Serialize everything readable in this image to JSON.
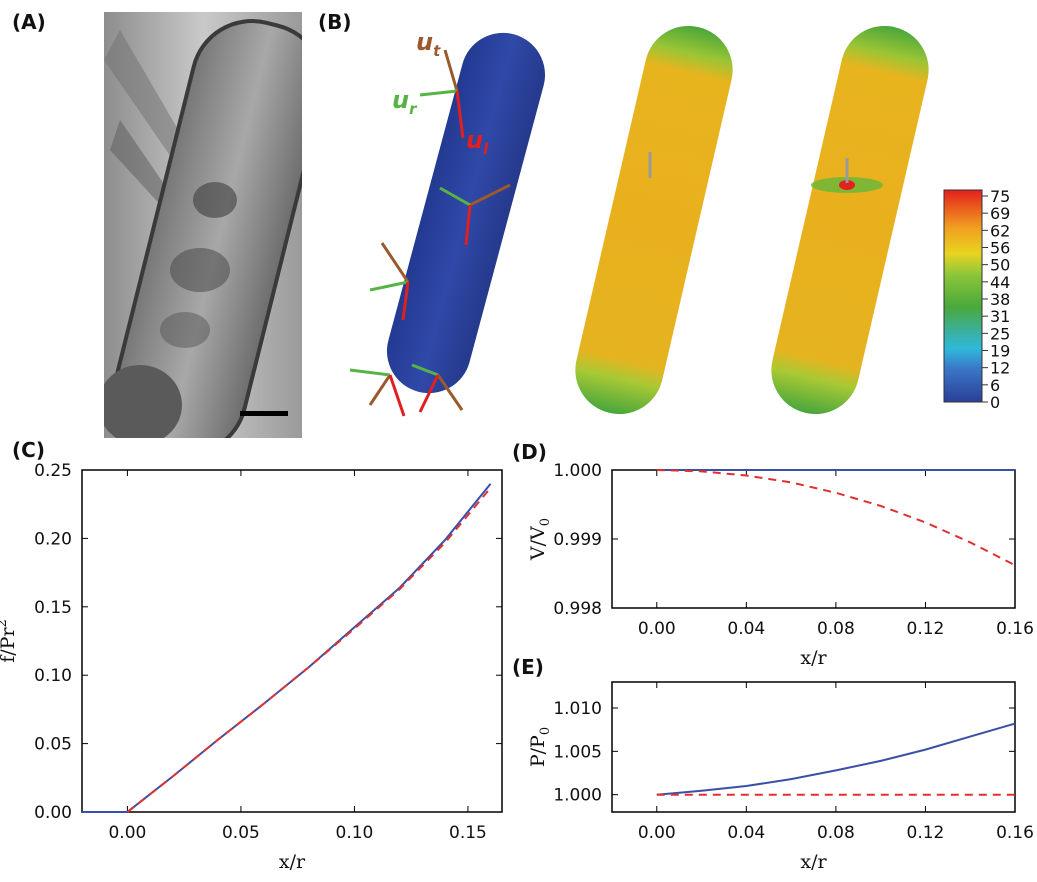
{
  "panels": {
    "a": "(A)",
    "b": "(B)",
    "c": "(C)",
    "d": "(D)",
    "e": "(E)"
  },
  "panel_b": {
    "vector_labels": {
      "t": "u",
      "t_sub": "t",
      "r": "u",
      "r_sub": "r",
      "l": "u",
      "l_sub": "l"
    },
    "colorbar_ticks": [
      "75",
      "69",
      "62",
      "56",
      "50",
      "44",
      "38",
      "31",
      "25",
      "19",
      "12",
      "6",
      "0"
    ],
    "colors": {
      "blue_cell": "#2c43a0",
      "stress_body": "#e8b21c",
      "stress_cap": "#4aa63a",
      "arrow_t": "#9a5a2e",
      "arrow_r": "#55b445",
      "arrow_l": "#e02020"
    }
  },
  "chart_data": [
    {
      "id": "C",
      "type": "line",
      "xlabel": "x/r",
      "ylabel": "f/Pr",
      "ylabel_sup": "2",
      "xlim": [
        -0.02,
        0.165
      ],
      "ylim": [
        0.0,
        0.25
      ],
      "xticks": [
        "0.00",
        "0.05",
        "0.10",
        "0.15"
      ],
      "xtick_values": [
        0.0,
        0.05,
        0.1,
        0.15
      ],
      "yticks": [
        "0.00",
        "0.05",
        "0.10",
        "0.15",
        "0.20",
        "0.25"
      ],
      "ytick_values": [
        0.0,
        0.05,
        0.1,
        0.15,
        0.2,
        0.25
      ],
      "series": [
        {
          "style": "solid",
          "color": "#3a4fa8",
          "x": [
            -0.02,
            0.0,
            0.02,
            0.04,
            0.06,
            0.08,
            0.1,
            0.12,
            0.14,
            0.16
          ],
          "y": [
            0.0,
            0.0,
            0.026,
            0.053,
            0.079,
            0.106,
            0.135,
            0.164,
            0.199,
            0.24
          ]
        },
        {
          "style": "dashed",
          "color": "#e03030",
          "x": [
            0.0,
            0.02,
            0.04,
            0.06,
            0.08,
            0.1,
            0.12,
            0.14,
            0.16
          ],
          "y": [
            0.0,
            0.026,
            0.053,
            0.079,
            0.106,
            0.134,
            0.163,
            0.197,
            0.237
          ]
        }
      ]
    },
    {
      "id": "D",
      "type": "line",
      "xlabel": "x/r",
      "ylabel": "V/V",
      "ylabel_sub": "0",
      "xlim": [
        -0.02,
        0.16
      ],
      "ylim": [
        0.998,
        1.0
      ],
      "xticks": [
        "0.00",
        "0.04",
        "0.08",
        "0.12",
        "0.16"
      ],
      "xtick_values": [
        0.0,
        0.04,
        0.08,
        0.12,
        0.16
      ],
      "yticks": [
        "0.998",
        "0.999",
        "1.000"
      ],
      "ytick_values": [
        0.998,
        0.999,
        1.0
      ],
      "series": [
        {
          "style": "solid",
          "color": "#3a4fa8",
          "x": [
            0.0,
            0.16
          ],
          "y": [
            1.0,
            1.0
          ]
        },
        {
          "style": "dashed",
          "color": "#e03030",
          "x": [
            0.0,
            0.02,
            0.04,
            0.06,
            0.08,
            0.1,
            0.12,
            0.14,
            0.16
          ],
          "y": [
            1.0,
            0.99998,
            0.99992,
            0.99982,
            0.99967,
            0.99948,
            0.99924,
            0.99895,
            0.99862
          ]
        }
      ]
    },
    {
      "id": "E",
      "type": "line",
      "xlabel": "x/r",
      "ylabel": "P/P",
      "ylabel_sub": "0",
      "xlim": [
        -0.02,
        0.16
      ],
      "ylim": [
        0.998,
        1.013
      ],
      "xticks": [
        "0.00",
        "0.04",
        "0.08",
        "0.12",
        "0.16"
      ],
      "xtick_values": [
        0.0,
        0.04,
        0.08,
        0.12,
        0.16
      ],
      "yticks": [
        "1.000",
        "1.005",
        "1.010"
      ],
      "ytick_values": [
        1.0,
        1.005,
        1.01
      ],
      "series": [
        {
          "style": "solid",
          "color": "#3a4fa8",
          "x": [
            0.0,
            0.02,
            0.04,
            0.06,
            0.08,
            0.1,
            0.12,
            0.14,
            0.16
          ],
          "y": [
            1.0,
            1.00045,
            1.001,
            1.0018,
            1.0028,
            1.0039,
            1.0052,
            1.0067,
            1.0082
          ]
        },
        {
          "style": "dashed",
          "color": "#e03030",
          "x": [
            0.0,
            0.16
          ],
          "y": [
            1.0,
            1.0
          ]
        }
      ]
    }
  ]
}
